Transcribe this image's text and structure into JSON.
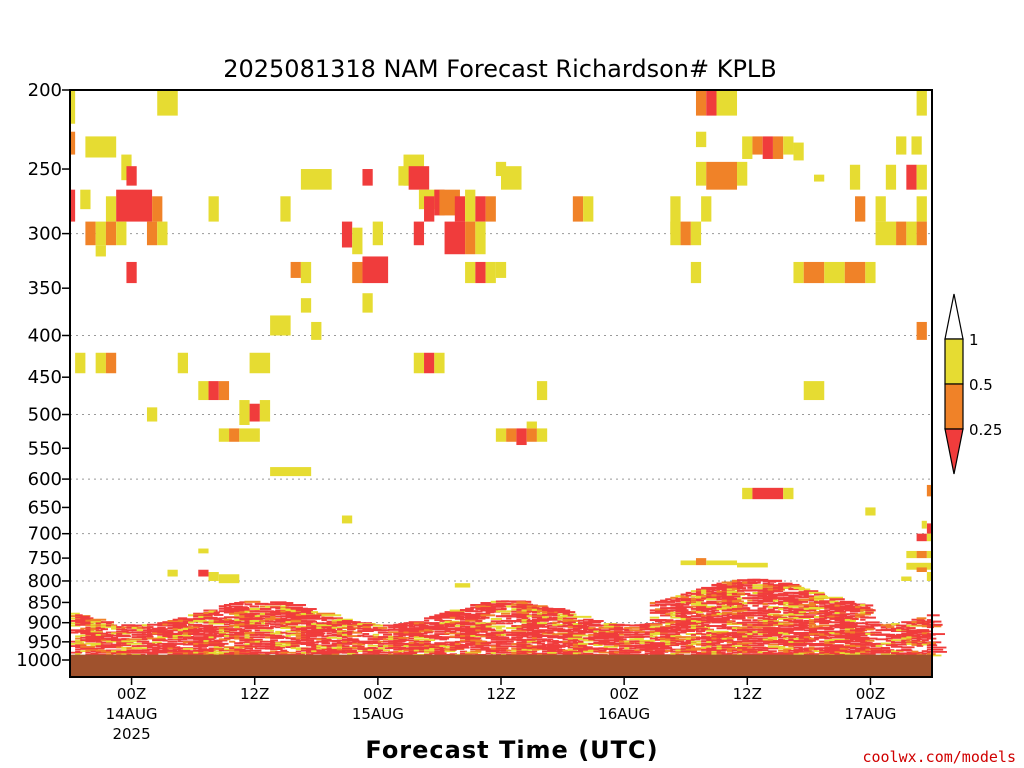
{
  "chart_data": {
    "type": "heatmap",
    "title": "2025081318 NAM Forecast Richardson# KPLB",
    "xlabel": "Forecast Time (UTC)",
    "ylabel": "",
    "credit": "coolwx.com/models",
    "y_scale": "log",
    "y_reversed": true,
    "ylim": [
      1000,
      200
    ],
    "xlim_hours": [
      0,
      84
    ],
    "y_ticks": [
      200,
      250,
      300,
      350,
      400,
      450,
      500,
      550,
      600,
      650,
      700,
      750,
      800,
      850,
      900,
      950,
      1000
    ],
    "y_gridlines": [
      300,
      400,
      500,
      600,
      700,
      800,
      900
    ],
    "x_ticks": [
      {
        "hour": 6,
        "time": "00Z",
        "date": "14AUG",
        "year": "2025"
      },
      {
        "hour": 18,
        "time": "12Z"
      },
      {
        "hour": 30,
        "time": "00Z",
        "date": "15AUG"
      },
      {
        "hour": 42,
        "time": "12Z"
      },
      {
        "hour": 54,
        "time": "00Z",
        "date": "16AUG"
      },
      {
        "hour": 66,
        "time": "12Z"
      },
      {
        "hour": 78,
        "time": "00Z",
        "date": "17AUG"
      }
    ],
    "colorbar": {
      "labels": [
        "1",
        "0.5",
        "0.25"
      ],
      "colors": {
        "red": "#f03c3c",
        "orange": "#f08228",
        "yellow": "#e6dc32",
        "white": "#ffffff"
      }
    },
    "ground_color": "#a0522d",
    "grid": "dotted",
    "cells": [
      [
        0,
        0.5,
        200,
        220,
        "y"
      ],
      [
        8.5,
        10.5,
        200,
        215,
        "y"
      ],
      [
        61,
        62,
        200,
        215,
        "o"
      ],
      [
        62,
        63,
        200,
        215,
        "r"
      ],
      [
        63,
        65,
        200,
        215,
        "y"
      ],
      [
        82.5,
        83.5,
        200,
        215,
        "y"
      ],
      [
        0,
        0.5,
        225,
        240,
        "o"
      ],
      [
        1.5,
        4.5,
        228,
        242,
        "y"
      ],
      [
        61,
        62,
        225,
        235,
        "y"
      ],
      [
        65.5,
        66.5,
        228,
        243,
        "y"
      ],
      [
        66.5,
        67.5,
        228,
        240,
        "o"
      ],
      [
        67.5,
        68.5,
        228,
        243,
        "r"
      ],
      [
        68.5,
        69.5,
        228,
        243,
        "o"
      ],
      [
        69.5,
        70.5,
        228,
        240,
        "y"
      ],
      [
        70.5,
        71.5,
        232,
        244,
        "y"
      ],
      [
        80.5,
        81.5,
        228,
        240,
        "y"
      ],
      [
        82,
        83,
        228,
        240,
        "y"
      ],
      [
        5,
        6,
        240,
        258,
        "y"
      ],
      [
        5.5,
        6.5,
        248,
        262,
        "r"
      ],
      [
        22.5,
        25.5,
        250,
        265,
        "y"
      ],
      [
        28.5,
        29.5,
        250,
        262,
        "r"
      ],
      [
        32.5,
        34.5,
        240,
        262,
        "y"
      ],
      [
        32,
        33,
        248,
        262,
        "y"
      ],
      [
        33,
        35,
        248,
        265,
        "r"
      ],
      [
        41.5,
        42.5,
        245,
        255,
        "y"
      ],
      [
        42,
        44,
        248,
        265,
        "y"
      ],
      [
        61,
        62,
        245,
        262,
        "y"
      ],
      [
        62,
        65,
        245,
        265,
        "o"
      ],
      [
        65,
        66,
        245,
        262,
        "y"
      ],
      [
        72.5,
        73.5,
        254,
        259,
        "y"
      ],
      [
        76,
        77,
        247,
        265,
        "y"
      ],
      [
        79.5,
        80.5,
        247,
        265,
        "y"
      ],
      [
        81.5,
        82.5,
        247,
        265,
        "r"
      ],
      [
        82.5,
        83.5,
        247,
        265,
        "y"
      ],
      [
        0,
        0.5,
        265,
        290,
        "r"
      ],
      [
        1,
        2,
        265,
        280,
        "y"
      ],
      [
        3.5,
        4.5,
        270,
        290,
        "y"
      ],
      [
        4.5,
        8,
        265,
        290,
        "r"
      ],
      [
        8,
        9,
        270,
        290,
        "o"
      ],
      [
        13.5,
        14.5,
        270,
        290,
        "y"
      ],
      [
        20.5,
        21.5,
        270,
        290,
        "y"
      ],
      [
        34,
        36,
        265,
        280,
        "y"
      ],
      [
        34.5,
        35.5,
        270,
        290,
        "r"
      ],
      [
        35.5,
        36.5,
        265,
        285,
        "r"
      ],
      [
        36,
        38,
        265,
        285,
        "o"
      ],
      [
        37.5,
        38.5,
        270,
        290,
        "r"
      ],
      [
        38.5,
        39.5,
        265,
        290,
        "y"
      ],
      [
        39.5,
        40.5,
        270,
        290,
        "r"
      ],
      [
        40.5,
        41.5,
        270,
        290,
        "o"
      ],
      [
        49,
        50,
        270,
        290,
        "o"
      ],
      [
        50,
        51,
        270,
        290,
        "y"
      ],
      [
        58.5,
        59.5,
        270,
        300,
        "y"
      ],
      [
        61.5,
        62.5,
        270,
        290,
        "y"
      ],
      [
        76.5,
        77.5,
        270,
        290,
        "o"
      ],
      [
        78.5,
        79.5,
        270,
        290,
        "y"
      ],
      [
        82.5,
        83.5,
        270,
        290,
        "y"
      ],
      [
        1.5,
        2.5,
        290,
        310,
        "o"
      ],
      [
        2.5,
        3.5,
        290,
        310,
        "y"
      ],
      [
        3.5,
        4.5,
        290,
        310,
        "o"
      ],
      [
        4.5,
        5.5,
        290,
        310,
        "y"
      ],
      [
        7.5,
        8.5,
        290,
        310,
        "o"
      ],
      [
        8.5,
        9.5,
        290,
        310,
        "y"
      ],
      [
        26.5,
        27.5,
        290,
        312,
        "r"
      ],
      [
        27.5,
        28.5,
        295,
        318,
        "y"
      ],
      [
        29.5,
        30.5,
        290,
        310,
        "y"
      ],
      [
        33.5,
        34.5,
        290,
        310,
        "r"
      ],
      [
        36.5,
        38.5,
        290,
        318,
        "r"
      ],
      [
        38.5,
        39.5,
        290,
        318,
        "o"
      ],
      [
        39.5,
        40.5,
        290,
        318,
        "y"
      ],
      [
        58.5,
        59.5,
        290,
        310,
        "y"
      ],
      [
        59.5,
        60.5,
        290,
        310,
        "o"
      ],
      [
        60.5,
        61.5,
        290,
        310,
        "y"
      ],
      [
        78.5,
        80.5,
        290,
        310,
        "y"
      ],
      [
        80.5,
        81.5,
        290,
        310,
        "o"
      ],
      [
        81.5,
        82.5,
        290,
        310,
        "y"
      ],
      [
        82.5,
        83.5,
        290,
        310,
        "o"
      ],
      [
        2.5,
        3.5,
        310,
        320,
        "y"
      ],
      [
        5.5,
        6.5,
        325,
        345,
        "r"
      ],
      [
        21.5,
        22.5,
        325,
        340,
        "o"
      ],
      [
        22.5,
        23.5,
        325,
        345,
        "y"
      ],
      [
        27.5,
        28.5,
        325,
        345,
        "o"
      ],
      [
        28.5,
        31,
        320,
        345,
        "r"
      ],
      [
        38.5,
        39.5,
        325,
        345,
        "y"
      ],
      [
        39.5,
        40.5,
        325,
        345,
        "r"
      ],
      [
        40.5,
        41.5,
        325,
        345,
        "y"
      ],
      [
        41.5,
        42.5,
        325,
        340,
        "y"
      ],
      [
        60.5,
        61.5,
        325,
        345,
        "y"
      ],
      [
        70.5,
        71.5,
        325,
        345,
        "y"
      ],
      [
        71.5,
        73.5,
        325,
        345,
        "o"
      ],
      [
        73.5,
        75.5,
        325,
        345,
        "y"
      ],
      [
        75.5,
        77.5,
        325,
        345,
        "o"
      ],
      [
        77.5,
        78.5,
        325,
        345,
        "y"
      ],
      [
        22.5,
        23.5,
        360,
        375,
        "y"
      ],
      [
        28.5,
        29.5,
        355,
        375,
        "y"
      ],
      [
        19.5,
        21.5,
        378,
        400,
        "y"
      ],
      [
        23.5,
        24.5,
        385,
        405,
        "y"
      ],
      [
        82.5,
        83.5,
        385,
        405,
        "o"
      ],
      [
        0.5,
        1.5,
        420,
        445,
        "y"
      ],
      [
        2.5,
        3.5,
        420,
        445,
        "y"
      ],
      [
        3.5,
        4.5,
        420,
        445,
        "o"
      ],
      [
        10.5,
        11.5,
        420,
        445,
        "y"
      ],
      [
        17.5,
        19.5,
        420,
        445,
        "y"
      ],
      [
        33.5,
        34.5,
        420,
        445,
        "y"
      ],
      [
        34.5,
        35.5,
        420,
        445,
        "r"
      ],
      [
        35.5,
        36.5,
        420,
        445,
        "y"
      ],
      [
        12.5,
        13.5,
        455,
        480,
        "y"
      ],
      [
        13.5,
        14.5,
        455,
        480,
        "r"
      ],
      [
        14.5,
        15.5,
        455,
        480,
        "o"
      ],
      [
        45.5,
        46.5,
        455,
        480,
        "y"
      ],
      [
        71.5,
        73.5,
        455,
        480,
        "y"
      ],
      [
        7.5,
        8.5,
        490,
        510,
        "y"
      ],
      [
        16.5,
        17.5,
        480,
        515,
        "y"
      ],
      [
        17.5,
        18.5,
        485,
        510,
        "r"
      ],
      [
        18.5,
        19.5,
        480,
        510,
        "y"
      ],
      [
        14.5,
        15.5,
        520,
        540,
        "y"
      ],
      [
        15.5,
        16.5,
        520,
        540,
        "o"
      ],
      [
        16.5,
        18.5,
        520,
        540,
        "y"
      ],
      [
        41.5,
        42.5,
        520,
        540,
        "y"
      ],
      [
        42.5,
        43.5,
        520,
        540,
        "o"
      ],
      [
        43.5,
        44.5,
        520,
        545,
        "r"
      ],
      [
        44.5,
        45.5,
        520,
        540,
        "o"
      ],
      [
        45.5,
        46.5,
        520,
        540,
        "y"
      ],
      [
        44.5,
        45.5,
        510,
        520,
        "y"
      ],
      [
        19.5,
        23.5,
        580,
        595,
        "y"
      ],
      [
        65.5,
        66.5,
        615,
        635,
        "y"
      ],
      [
        66.5,
        69.5,
        615,
        635,
        "r"
      ],
      [
        69.5,
        70.5,
        615,
        635,
        "y"
      ],
      [
        83.5,
        84,
        610,
        630,
        "o"
      ],
      [
        26.5,
        27.5,
        665,
        680,
        "y"
      ],
      [
        77.5,
        78.5,
        650,
        665,
        "y"
      ],
      [
        83.5,
        84,
        680,
        700,
        "r"
      ],
      [
        83,
        83.5,
        675,
        690,
        "y"
      ],
      [
        82.5,
        83.5,
        700,
        715,
        "r"
      ],
      [
        83.5,
        84,
        700,
        715,
        "y"
      ],
      [
        12.5,
        13.5,
        730,
        740,
        "y"
      ],
      [
        81.5,
        82.5,
        735,
        750,
        "y"
      ],
      [
        82.5,
        83.5,
        735,
        750,
        "o"
      ],
      [
        83.5,
        84,
        735,
        750,
        "y"
      ],
      [
        59.5,
        61,
        755,
        765,
        "y"
      ],
      [
        61,
        62,
        750,
        765,
        "o"
      ],
      [
        62,
        65,
        755,
        765,
        "y"
      ],
      [
        65,
        68,
        760,
        770,
        "y"
      ],
      [
        81.5,
        84,
        760,
        775,
        "y"
      ],
      [
        82.5,
        83.5,
        770,
        780,
        "o"
      ],
      [
        9.5,
        10.5,
        775,
        790,
        "y"
      ],
      [
        12.5,
        13.5,
        775,
        790,
        "r"
      ],
      [
        13.5,
        14.5,
        780,
        800,
        "y"
      ],
      [
        14.5,
        16.5,
        785,
        805,
        "y"
      ],
      [
        37.5,
        39,
        805,
        815,
        "y"
      ],
      [
        81,
        82,
        790,
        800,
        "y"
      ],
      [
        83.5,
        84,
        780,
        800,
        "y"
      ]
    ],
    "ground_from_hpa": 985
  }
}
